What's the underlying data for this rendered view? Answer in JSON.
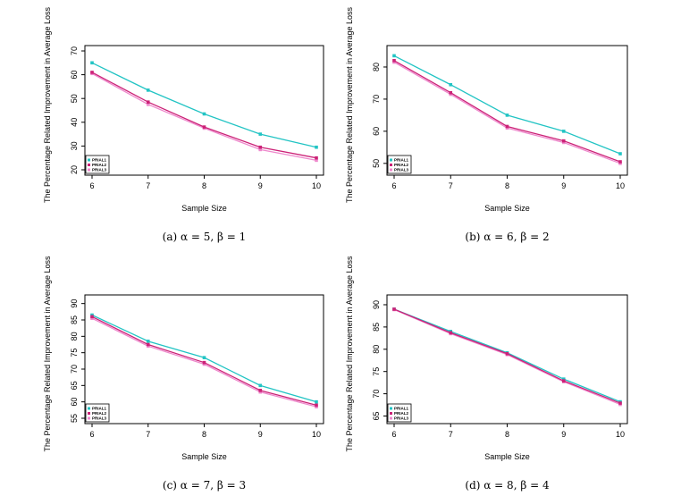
{
  "chart_data": [
    {
      "type": "line",
      "caption": "(a) α = 5, β = 1",
      "xlabel": "Sample Size",
      "ylabel": "The Percentage Related Improvement in Average Loss",
      "x": [
        6,
        7,
        8,
        9,
        10
      ],
      "xlim": [
        6,
        10
      ],
      "ylim": [
        20,
        70
      ],
      "yticks": [
        20,
        30,
        40,
        50,
        60,
        70
      ],
      "legend_position": "bottom-left",
      "series": [
        {
          "name": "PRIAL1",
          "color": "#22C4C4",
          "values": [
            65,
            53.5,
            43.5,
            35,
            29.5
          ]
        },
        {
          "name": "PRIAL2",
          "color": "#CC2277",
          "values": [
            61,
            48.5,
            38,
            29.5,
            25
          ]
        },
        {
          "name": "PRIAL3",
          "color": "#EE88CC",
          "values": [
            60.5,
            47.5,
            37.5,
            28.5,
            24
          ]
        }
      ]
    },
    {
      "type": "line",
      "caption": "(b) α = 6, β = 2",
      "xlabel": "Sample Size",
      "ylabel": "The Percentage Related Improvement in Average Loss",
      "x": [
        6,
        7,
        8,
        9,
        10
      ],
      "xlim": [
        6,
        10
      ],
      "ylim": [
        48,
        85
      ],
      "yticks": [
        50,
        60,
        70,
        80
      ],
      "legend_position": "bottom-left",
      "series": [
        {
          "name": "PRIAL1",
          "color": "#22C4C4",
          "values": [
            83.5,
            74.5,
            65,
            60,
            53
          ]
        },
        {
          "name": "PRIAL2",
          "color": "#CC2277",
          "values": [
            82,
            72,
            61.5,
            57,
            50.5
          ]
        },
        {
          "name": "PRIAL3",
          "color": "#EE88CC",
          "values": [
            81.5,
            71.5,
            61,
            56.5,
            50
          ]
        }
      ]
    },
    {
      "type": "line",
      "caption": "(c) α = 7, β = 3",
      "xlabel": "Sample Size",
      "ylabel": "The Percentage Related Improvement in Average Loss",
      "x": [
        6,
        7,
        8,
        9,
        10
      ],
      "xlim": [
        6,
        10
      ],
      "ylim": [
        55,
        91
      ],
      "yticks": [
        55,
        60,
        65,
        70,
        75,
        80,
        85,
        90
      ],
      "legend_position": "bottom-left",
      "series": [
        {
          "name": "PRIAL1",
          "color": "#22C4C4",
          "values": [
            86.5,
            78.5,
            73.5,
            65,
            60
          ]
        },
        {
          "name": "PRIAL2",
          "color": "#CC2277",
          "values": [
            86,
            77.5,
            72,
            63.5,
            59
          ]
        },
        {
          "name": "PRIAL3",
          "color": "#EE88CC",
          "values": [
            85.5,
            77,
            71.5,
            63,
            58.5
          ]
        }
      ]
    },
    {
      "type": "line",
      "caption": "(d) α = 8, β = 4",
      "xlabel": "Sample Size",
      "ylabel": "The Percentage Related Improvement in Average Loss",
      "x": [
        6,
        7,
        8,
        9,
        10
      ],
      "xlim": [
        6,
        10
      ],
      "ylim": [
        64.5,
        91
      ],
      "yticks": [
        65,
        70,
        75,
        80,
        85,
        90
      ],
      "legend_position": "bottom-left",
      "series": [
        {
          "name": "PRIAL1",
          "color": "#22C4C4",
          "values": [
            89,
            84,
            79.2,
            73.3,
            68.2
          ]
        },
        {
          "name": "PRIAL2",
          "color": "#CC2277",
          "values": [
            89,
            83.7,
            79,
            72.9,
            67.9
          ]
        },
        {
          "name": "PRIAL3",
          "color": "#EE88CC",
          "values": [
            88.9,
            83.5,
            78.8,
            72.7,
            67.6
          ]
        }
      ]
    }
  ]
}
